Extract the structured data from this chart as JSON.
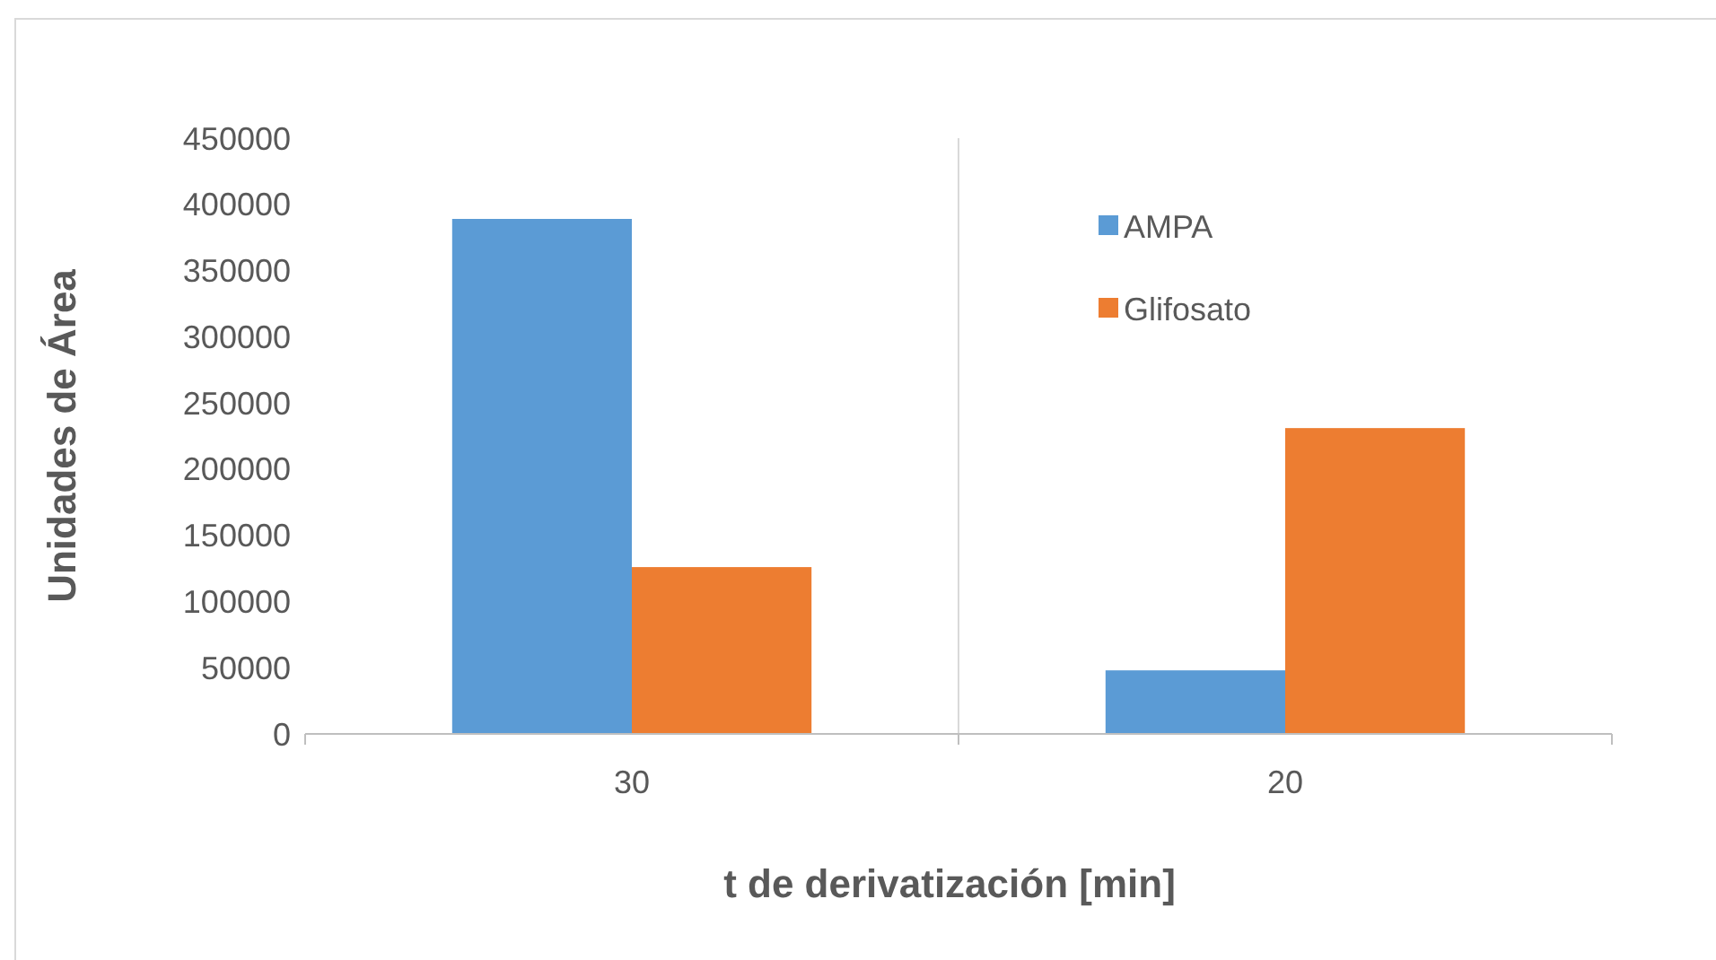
{
  "chart_data": {
    "type": "bar",
    "categories": [
      "30",
      "20"
    ],
    "series": [
      {
        "name": "AMPA",
        "color": "#5b9bd5",
        "values": [
          389000,
          48000
        ]
      },
      {
        "name": "Glifosato",
        "color": "#ed7d31",
        "values": [
          126000,
          231000
        ]
      }
    ],
    "ylim": [
      0,
      450000
    ],
    "yticks": [
      0,
      50000,
      100000,
      150000,
      200000,
      250000,
      300000,
      350000,
      400000,
      450000
    ],
    "xlabel": "t de derivatización [min]",
    "ylabel": "Unidades de Área",
    "grid": "x",
    "legend": "top right"
  }
}
